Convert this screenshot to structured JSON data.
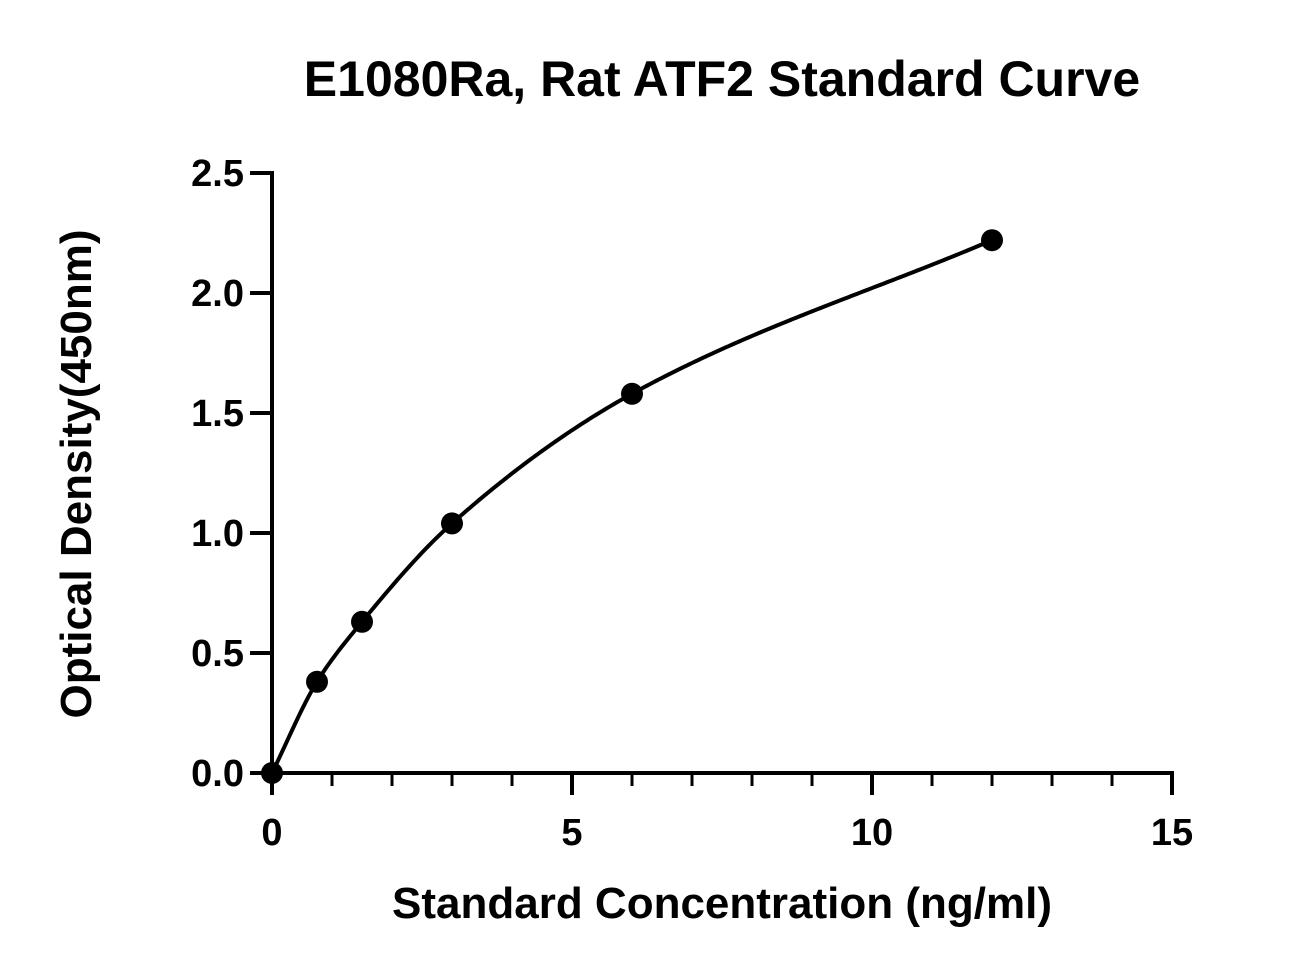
{
  "chart_data": {
    "type": "scatter",
    "title": "E1080Ra, Rat ATF2 Standard Curve",
    "xlabel": "Standard Concentration (ng/ml)",
    "ylabel": "Optical Density(450nm)",
    "xlim": [
      0,
      15
    ],
    "ylim": [
      0,
      2.5
    ],
    "x_ticks": [
      0,
      5,
      10,
      15
    ],
    "x_tick_labels": [
      "0",
      "5",
      "10",
      "15"
    ],
    "x_minor_step": 1,
    "y_ticks": [
      0,
      0.5,
      1.0,
      1.5,
      2.0,
      2.5
    ],
    "y_tick_labels": [
      "0.0",
      "0.5",
      "1.0",
      "1.5",
      "2.0",
      "2.5"
    ],
    "grid": false,
    "legend": "none",
    "series": [
      {
        "x": [
          0,
          0.75,
          1.5,
          3,
          6,
          12
        ],
        "y": [
          0.0,
          0.38,
          0.63,
          1.04,
          1.58,
          2.22
        ],
        "fit": "smooth curve through points",
        "marker": "filled-circle",
        "color": "#000000"
      }
    ]
  }
}
